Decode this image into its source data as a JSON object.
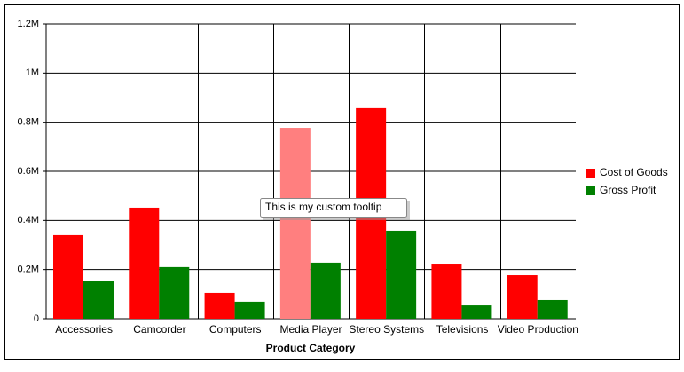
{
  "chart_data": {
    "type": "bar",
    "x_label": "Product Category",
    "categories": [
      "Accessories",
      "Camcorder",
      "Computers",
      "Media Player",
      "Stereo Systems",
      "Televisions",
      "Video Production"
    ],
    "series": [
      {
        "name": "Cost of Goods",
        "color": "#ff0000",
        "values": [
          340000,
          452000,
          105000,
          777000,
          857000,
          224000,
          177000
        ]
      },
      {
        "name": "Gross Profit",
        "color": "#008000",
        "values": [
          152000,
          210000,
          69000,
          228000,
          358000,
          54000,
          76000
        ]
      }
    ],
    "ylim": [
      0,
      1200000
    ],
    "yticks": [
      0,
      {
        "value": 200000,
        "label": "0.2M"
      },
      {
        "value": 400000,
        "label": "0.4M"
      },
      {
        "value": 600000,
        "label": "0.6M"
      },
      {
        "value": 800000,
        "label": "0.8M"
      },
      {
        "value": 1000000,
        "label": "1M"
      },
      {
        "value": 1200000,
        "label": "1.2M"
      }
    ],
    "grid": true,
    "legend": "right",
    "highlight": {
      "series": 0,
      "index": 3,
      "color": "#ff7f7f"
    },
    "tooltip": "This is my custom tooltip"
  }
}
